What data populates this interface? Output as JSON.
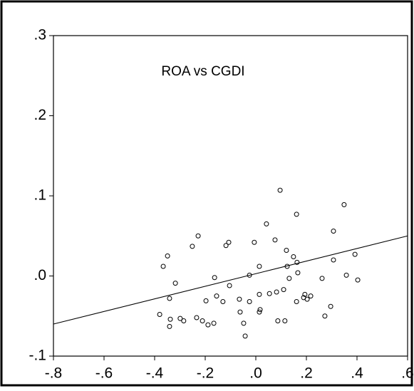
{
  "chart_data": {
    "type": "scatter",
    "title": "ROA vs CGDI",
    "xlim": [
      -0.8,
      0.6
    ],
    "ylim": [
      -0.1,
      0.3
    ],
    "xticks": [
      {
        "value": -0.8,
        "label": "-.8"
      },
      {
        "value": -0.6,
        "label": "-.6"
      },
      {
        "value": -0.4,
        "label": "-.4"
      },
      {
        "value": -0.2,
        "label": "-.2"
      },
      {
        "value": 0.0,
        "label": ".0"
      },
      {
        "value": 0.2,
        "label": ".2"
      },
      {
        "value": 0.4,
        "label": ".4"
      },
      {
        "value": 0.6,
        "label": ".6"
      }
    ],
    "yticks": [
      {
        "value": -0.1,
        "label": "-.1"
      },
      {
        "value": 0.0,
        "label": ".0"
      },
      {
        "value": 0.1,
        "label": ".1"
      },
      {
        "value": 0.2,
        "label": ".2"
      },
      {
        "value": 0.3,
        "label": ".3"
      }
    ],
    "color": "#000000",
    "x": [
      0.096,
      0.161,
      0.349,
      0.042,
      0.307,
      -0.228,
      -0.107,
      -0.118,
      -0.349,
      -0.251,
      -0.006,
      0.076,
      0.121,
      0.149,
      0.163,
      -0.366,
      -0.318,
      -0.163,
      -0.025,
      0.014,
      0.124,
      0.132,
      0.166,
      0.262,
      0.358,
      0.392,
      0.307,
      0.403,
      -0.38,
      -0.341,
      -0.338,
      -0.341,
      -0.299,
      -0.234,
      -0.285,
      -0.211,
      -0.189,
      -0.166,
      -0.155,
      -0.197,
      -0.13,
      -0.104,
      -0.065,
      -0.025,
      -0.062,
      -0.048,
      -0.042,
      0.014,
      0.014,
      0.017,
      0.054,
      0.082,
      0.11,
      0.087,
      0.115,
      0.161,
      0.194,
      0.189,
      0.217,
      0.203,
      0.296,
      0.273
    ],
    "values": [
      0.107,
      0.077,
      0.089,
      0.065,
      0.056,
      0.05,
      0.042,
      0.038,
      0.025,
      0.037,
      0.042,
      0.045,
      0.032,
      0.024,
      0.017,
      0.012,
      -0.009,
      -0.002,
      0.001,
      0.012,
      0.012,
      -0.003,
      0.004,
      -0.003,
      0.001,
      0.027,
      0.02,
      -0.005,
      -0.048,
      -0.028,
      -0.054,
      -0.063,
      -0.053,
      -0.052,
      -0.056,
      -0.056,
      -0.061,
      -0.059,
      -0.025,
      -0.031,
      -0.032,
      -0.012,
      -0.029,
      -0.032,
      -0.045,
      -0.059,
      -0.075,
      -0.023,
      -0.045,
      -0.042,
      -0.022,
      -0.02,
      -0.017,
      -0.056,
      -0.056,
      -0.032,
      -0.023,
      -0.027,
      -0.025,
      -0.029,
      -0.038,
      -0.05
    ],
    "fit_line": {
      "x": [
        -0.8,
        0.6
      ],
      "y": [
        -0.06,
        0.05
      ]
    }
  }
}
